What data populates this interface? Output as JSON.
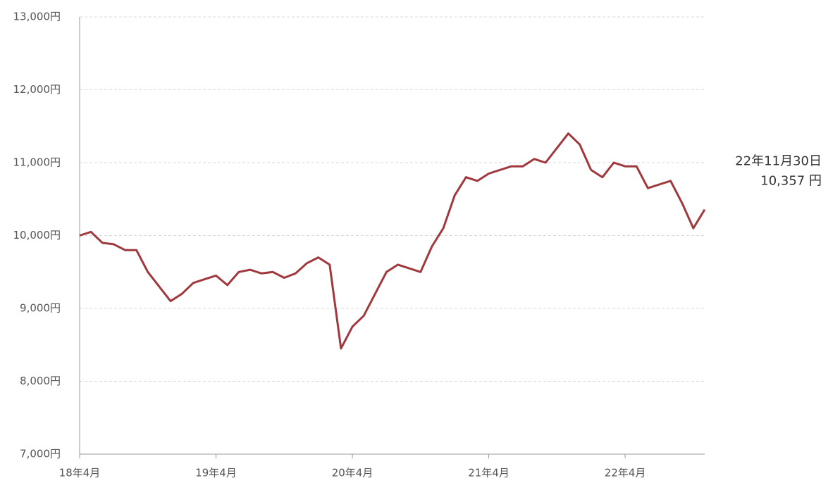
{
  "chart_data": {
    "type": "line",
    "categories": [
      "18年4月",
      null,
      null,
      null,
      null,
      null,
      null,
      null,
      null,
      null,
      null,
      null,
      "19年4月",
      null,
      null,
      null,
      null,
      null,
      null,
      null,
      null,
      null,
      null,
      null,
      "20年4月",
      null,
      null,
      null,
      null,
      null,
      null,
      null,
      null,
      null,
      null,
      null,
      "21年4月",
      null,
      null,
      null,
      null,
      null,
      null,
      null,
      null,
      null,
      null,
      null,
      "22年4月",
      null,
      null,
      null,
      null,
      null,
      null,
      null
    ],
    "series": [
      {
        "color": "#a0393e",
        "values": [
          10000,
          10050,
          9900,
          9880,
          9800,
          9800,
          9500,
          9300,
          9100,
          9200,
          9350,
          9400,
          9450,
          9320,
          9500,
          9530,
          9480,
          9500,
          9420,
          9480,
          9620,
          9700,
          9600,
          8450,
          8750,
          8900,
          9200,
          9500,
          9600,
          9550,
          9500,
          9850,
          10100,
          10550,
          10800,
          10750,
          10850,
          10900,
          10950,
          10950,
          11050,
          11000,
          11200,
          11400,
          11250,
          10900,
          10800,
          11000,
          10950,
          10950,
          10650,
          10700,
          10750,
          10450,
          10100,
          10357
        ]
      }
    ],
    "ylim": [
      7000,
      13000
    ],
    "yticks": [
      {
        "value": 7000,
        "label": "7,000円"
      },
      {
        "value": 8000,
        "label": "8,000円"
      },
      {
        "value": 9000,
        "label": "9,000円"
      },
      {
        "value": 10000,
        "label": "10,000円"
      },
      {
        "value": 11000,
        "label": "11,000円"
      },
      {
        "value": 12000,
        "label": "12,000円"
      },
      {
        "value": 13000,
        "label": "13,000円"
      }
    ],
    "grid": true,
    "annotation": {
      "date": "22年11月30日",
      "value_label": "10,357 円"
    }
  }
}
